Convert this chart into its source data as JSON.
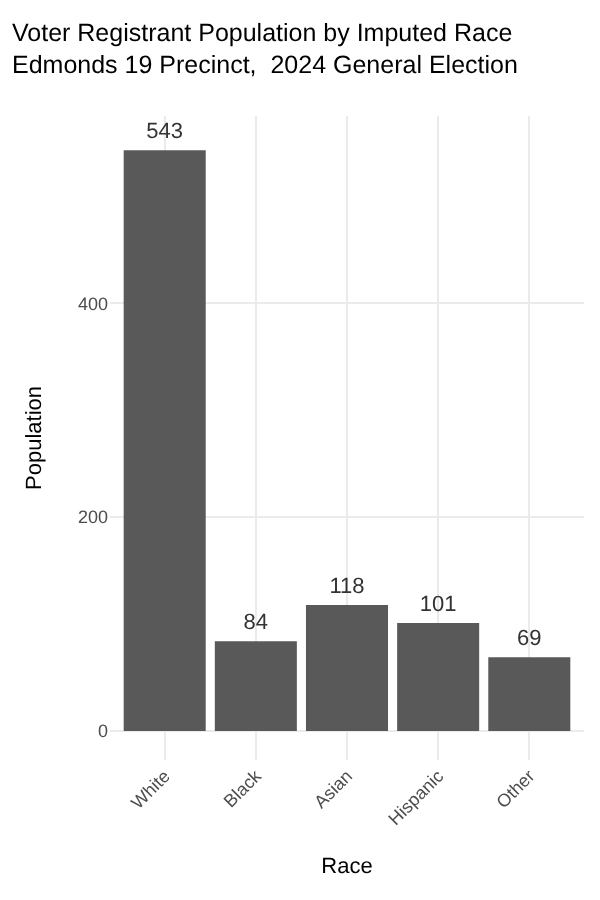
{
  "chart_data": {
    "type": "bar",
    "title": "Voter Registrant Population by Imputed Race",
    "subtitle": "Edmonds 19 Precinct,  2024 General Election",
    "xlabel": "Race",
    "ylabel": "Population",
    "categories": [
      "White",
      "Black",
      "Asian",
      "Hispanic",
      "Other"
    ],
    "values": [
      543,
      84,
      118,
      101,
      69
    ],
    "color": "#595959",
    "ylim": [
      -27,
      575
    ],
    "yticks": [
      0,
      200,
      400
    ],
    "grid": true,
    "data_labels": true
  }
}
